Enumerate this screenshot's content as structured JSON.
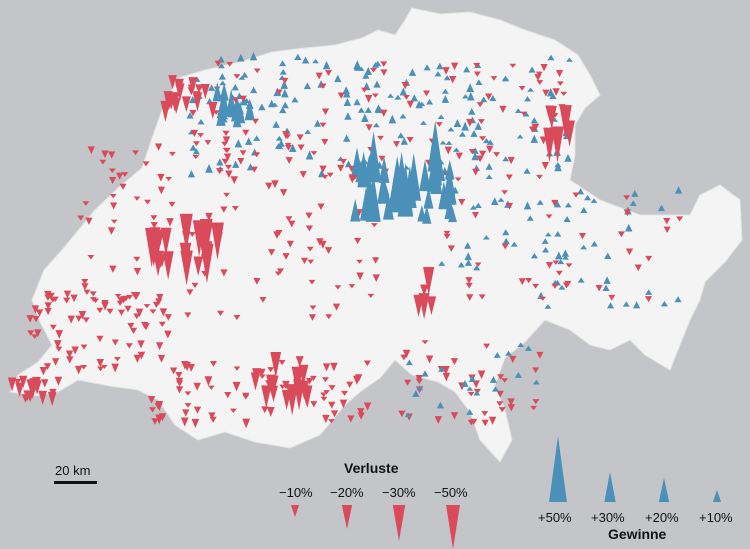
{
  "scale": {
    "label": "20 km"
  },
  "legend": {
    "losses": {
      "title": "Verluste",
      "color": "#d94a5a",
      "items": [
        {
          "label": "−10%",
          "value": -10
        },
        {
          "label": "−20%",
          "value": -20
        },
        {
          "label": "−30%",
          "value": -30
        },
        {
          "label": "−50%",
          "value": -50
        }
      ]
    },
    "gains": {
      "title": "Gewinne",
      "color": "#4a90b8",
      "items": [
        {
          "label": "+50%",
          "value": 50
        },
        {
          "label": "+30%",
          "value": 30
        },
        {
          "label": "+20%",
          "value": 20
        },
        {
          "label": "+10%",
          "value": 10
        }
      ]
    }
  },
  "colors": {
    "background": "#c3c5c9",
    "land": "#f4f4f4",
    "gain": "#4a90b8",
    "loss": "#d94a5a"
  }
}
